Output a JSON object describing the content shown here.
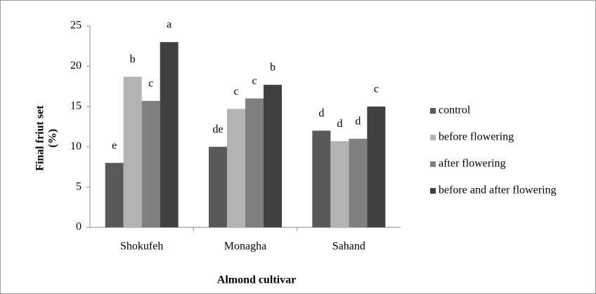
{
  "chart_data": {
    "type": "bar",
    "x_label": "Almond cultivar",
    "y_label": [
      "Final friut set",
      "(%)"
    ],
    "categories": [
      "Shokufeh",
      "Monagha",
      "Sahand"
    ],
    "series": [
      {
        "name": "control",
        "color": "#595959",
        "values": [
          8,
          10,
          12
        ],
        "letters": [
          "e",
          "de",
          "d"
        ]
      },
      {
        "name": "before flowering",
        "color": "#b3b3b3",
        "values": [
          18.7,
          14.7,
          10.7
        ],
        "letters": [
          "b",
          "c",
          "d"
        ]
      },
      {
        "name": "after flowering",
        "color": "#808080",
        "values": [
          15.7,
          16,
          11
        ],
        "letters": [
          "c",
          "c",
          "d"
        ]
      },
      {
        "name": "before and after flowering",
        "color": "#404040",
        "values": [
          23,
          17.7,
          15
        ],
        "letters": [
          "a",
          "b",
          "c"
        ]
      }
    ],
    "ylim": [
      0,
      25
    ],
    "yticks": [
      0,
      5,
      10,
      15,
      20,
      25
    ],
    "legend": "right"
  }
}
